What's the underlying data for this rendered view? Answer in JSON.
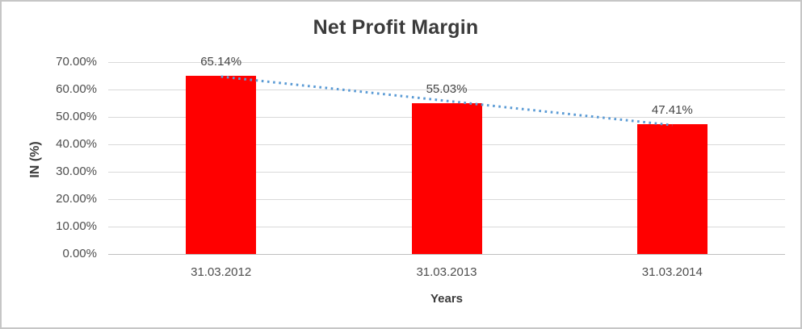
{
  "chart_data": {
    "type": "bar",
    "title": "Net Profit Margin",
    "xlabel": "Years",
    "ylabel": "IN (%)",
    "categories": [
      "31.03.2012",
      "31.03.2013",
      "31.03.2014"
    ],
    "values": [
      65.14,
      55.03,
      47.41
    ],
    "data_labels": [
      "65.14%",
      "55.03%",
      "47.41%"
    ],
    "ylim": [
      0,
      70
    ],
    "ytick_step": 10,
    "ytick_labels_top_to_bottom": [
      "70.00%",
      "60.00%",
      "50.00%",
      "40.00%",
      "30.00%",
      "20.00%",
      "10.00%",
      "0.00%"
    ],
    "grid": true,
    "legend_position": "none",
    "bar_color": "#FF0000",
    "trendline": {
      "type": "linear",
      "style": "dotted",
      "color": "#5B9BD5",
      "start_value_pct": 64.7,
      "end_value_pct": 47.0
    },
    "colors": {
      "gridline": "#D9D9D9",
      "axis_line": "#BFBFBF",
      "title_text": "#3B3B3B",
      "tick_text": "#4D4D4D",
      "frame_border": "#C6C6C6"
    }
  }
}
